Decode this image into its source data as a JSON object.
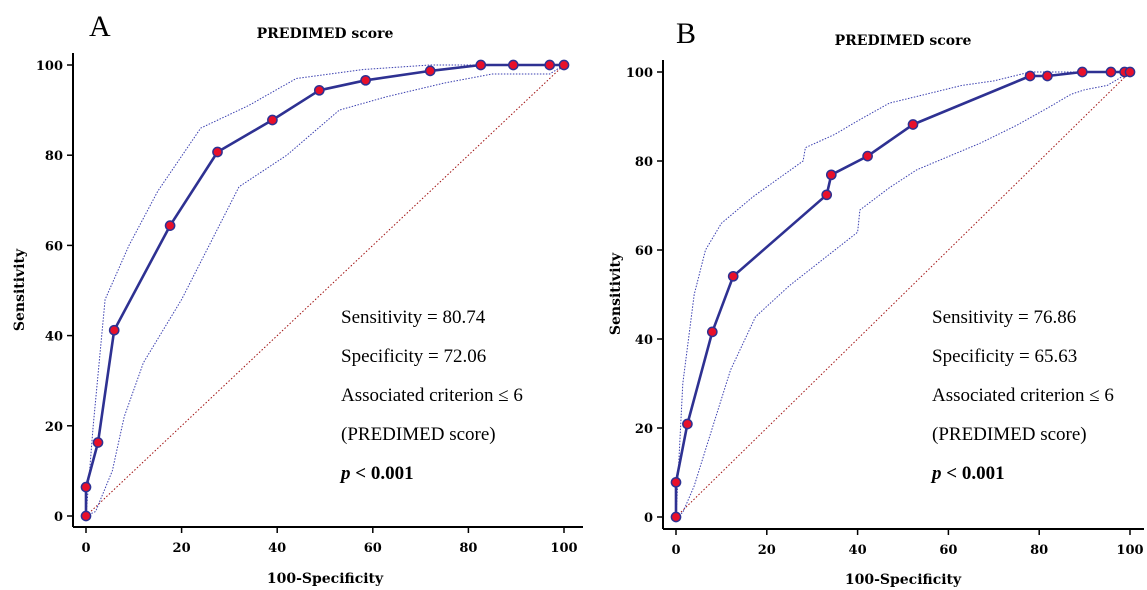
{
  "chart_data": [
    {
      "type": "line",
      "panel_label": "A",
      "title": "PREDIMED score",
      "xlabel": "100-Specificity",
      "ylabel": "Sensitivity",
      "xlim": [
        0,
        100
      ],
      "ylim": [
        0,
        100
      ],
      "xticks": [
        "0",
        "20",
        "40",
        "60",
        "80",
        "100"
      ],
      "yticks": [
        "0",
        "20",
        "40",
        "60",
        "80",
        "100"
      ],
      "grid": false,
      "series": [
        {
          "x": [
            0,
            0,
            2.5,
            5.9,
            17.6,
            27.5,
            39,
            48.8,
            58.5,
            72,
            82.6,
            89.4,
            97,
            100
          ],
          "y": [
            0,
            6.4,
            16.3,
            41.2,
            64.4,
            80.7,
            87.8,
            94.4,
            96.6,
            98.7,
            100,
            100,
            100,
            100
          ],
          "color": "#2e3192",
          "marker_color": "#e8102a"
        }
      ],
      "ci_upper": {
        "x": [
          0,
          1.5,
          4,
          9,
          15,
          24,
          34,
          44,
          58,
          72,
          82,
          90,
          100
        ],
        "y": [
          0,
          20,
          48,
          60,
          72,
          86,
          91,
          97,
          99,
          100,
          100,
          100,
          100
        ]
      },
      "ci_lower": {
        "x": [
          0,
          2,
          5.5,
          8,
          12,
          20,
          32,
          42,
          53,
          63,
          75,
          85,
          97,
          100
        ],
        "y": [
          0,
          1,
          10,
          22,
          34,
          48,
          73,
          80,
          90,
          93,
          96,
          98,
          98,
          100
        ]
      },
      "reference_line": {
        "x": [
          0,
          100
        ],
        "y": [
          0,
          100
        ],
        "color": "#a01010"
      },
      "annotations": {
        "sensitivity": "Sensitivity = 80.74",
        "specificity": "Specificity = 72.06",
        "criterion": "Associated criterion ≤ 6",
        "score_name": "(PREDIMED score)",
        "p_italic": "p",
        "p_rest": " < 0.001"
      }
    },
    {
      "type": "line",
      "panel_label": "B",
      "title": "PREDIMED score",
      "xlabel": "100-Specificity",
      "ylabel": "Sensitivity",
      "xlim": [
        0,
        100
      ],
      "ylim": [
        0,
        100
      ],
      "xticks": [
        "0",
        "20",
        "40",
        "60",
        "80",
        "100"
      ],
      "yticks": [
        "0",
        "20",
        "40",
        "60",
        "80",
        "100"
      ],
      "grid": false,
      "series": [
        {
          "x": [
            0,
            0,
            2.5,
            8,
            12.6,
            33.2,
            34.2,
            42.2,
            52.2,
            78,
            81.8,
            89.5,
            95.8,
            98.8,
            100
          ],
          "y": [
            0,
            7.8,
            20.9,
            41.6,
            54.1,
            72.4,
            76.9,
            81.1,
            88.2,
            99.1,
            99.1,
            100,
            100,
            100,
            100
          ],
          "color": "#2e3192",
          "marker_color": "#e8102a"
        }
      ],
      "ci_upper": {
        "x": [
          0,
          1.5,
          4,
          6.5,
          10,
          17,
          28,
          28.5,
          35,
          40,
          47,
          55,
          63,
          70,
          78,
          85,
          92,
          100
        ],
        "y": [
          0,
          30,
          50,
          60,
          66,
          72,
          80,
          83,
          86,
          89,
          93,
          95,
          97,
          98,
          100,
          100,
          100,
          100
        ]
      },
      "ci_lower": {
        "x": [
          0,
          1.5,
          4,
          8,
          12,
          17.5,
          25,
          35,
          40,
          40.5,
          47,
          53,
          60,
          67,
          75,
          82,
          87,
          90,
          95,
          100
        ],
        "y": [
          0,
          1,
          7,
          20,
          33,
          45,
          52,
          60,
          64,
          69,
          74,
          78,
          81,
          84,
          88,
          92,
          95,
          96,
          97,
          100
        ]
      },
      "reference_line": {
        "x": [
          0,
          100
        ],
        "y": [
          0,
          100
        ],
        "color": "#a01010"
      },
      "annotations": {
        "sensitivity": "Sensitivity = 76.86",
        "specificity": "Specificity = 65.63",
        "criterion": "Associated criterion ≤ 6",
        "score_name": "(PREDIMED score)",
        "p_italic": "p",
        "p_rest": " < 0.001"
      }
    }
  ]
}
